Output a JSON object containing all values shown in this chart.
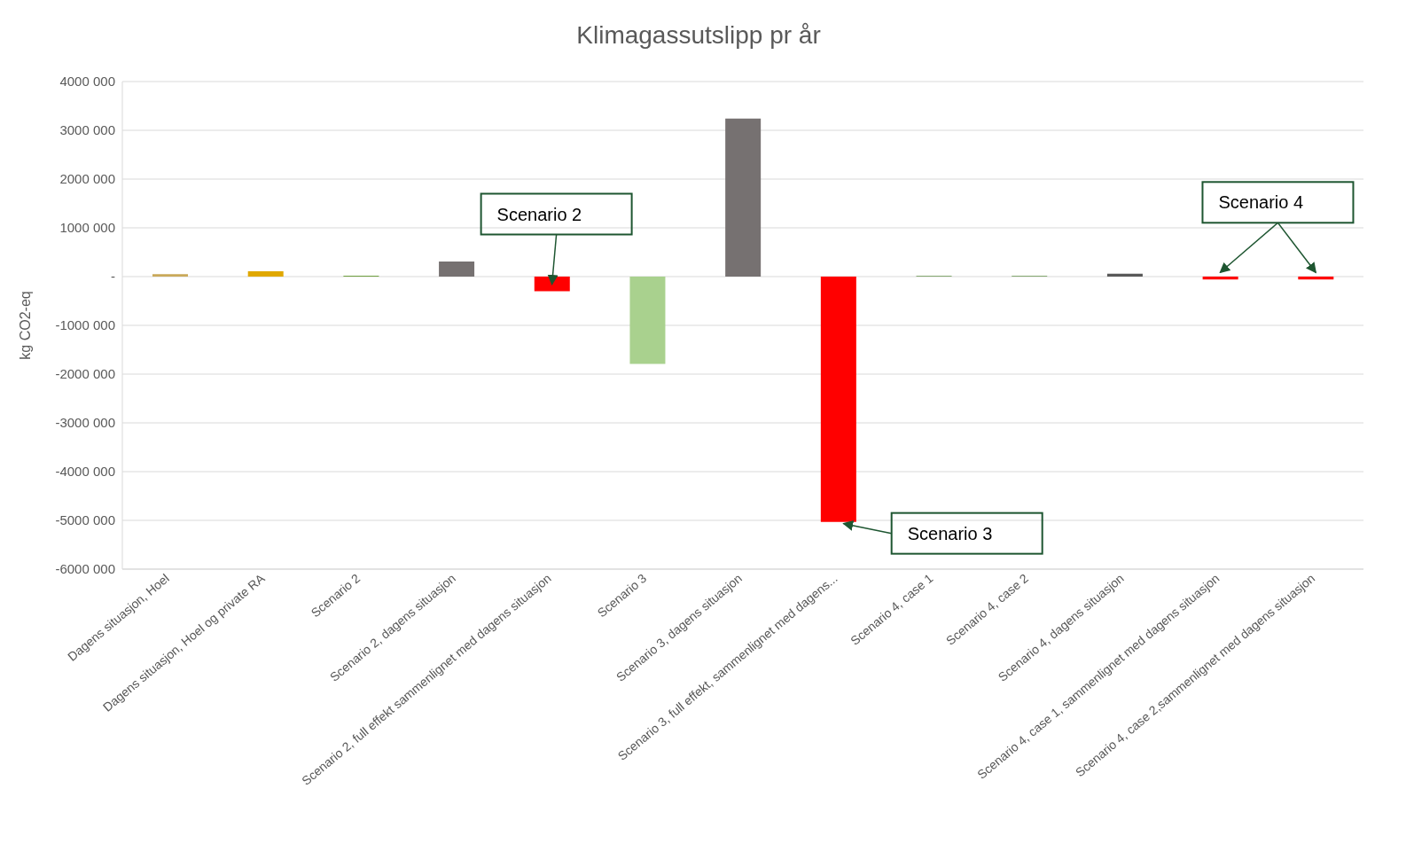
{
  "chart_data": {
    "type": "bar",
    "title": "Klimagassutslipp pr år",
    "ylabel": "kg CO2-eq",
    "categories": [
      "Dagens situasjon, Hoel",
      "Dagens situasjon, Hoel og private RA",
      "Scenario 2",
      "Scenario 2, dagens situasjon",
      "Scenario 2, full effekt sammenlignet med dagens situasjon",
      "Scenario 3",
      "Scenario 3, dagens situasjon",
      "Scenario 3, full effekt, sammenlignet med dagens...",
      "Scenario 4, case 1",
      "Scenario 4, case 2",
      "Scenario 4, dagens situasjon",
      "Scenario 4, case 1, sammenlignet med dagens situasjon",
      "Scenario 4, case 2,sammenlignet med dagens situasjon"
    ],
    "values": [
      50000,
      110000,
      20000,
      310000,
      -300000,
      -1790000,
      3240000,
      -5030000,
      20000,
      20000,
      60000,
      -60000,
      -60000
    ],
    "colors": [
      "#c9a95a",
      "#e0a800",
      "#70a040",
      "#767171",
      "#ff0000",
      "#a9d18e",
      "#767171",
      "#ff0000",
      "#84a870",
      "#84a870",
      "#595959",
      "#ff0000",
      "#ff0000"
    ],
    "ylim": [
      -6000000,
      4000000
    ],
    "yticks": [
      {
        "value": -6000000,
        "label": "-6000 000"
      },
      {
        "value": -5000000,
        "label": "-5000 000"
      },
      {
        "value": -4000000,
        "label": "-4000 000"
      },
      {
        "value": -3000000,
        "label": "-3000 000"
      },
      {
        "value": -2000000,
        "label": "-2000 000"
      },
      {
        "value": -1000000,
        "label": "-1000 000"
      },
      {
        "value": 0,
        "label": "-"
      },
      {
        "value": 1000000,
        "label": "1000 000"
      },
      {
        "value": 2000000,
        "label": "2000 000"
      },
      {
        "value": 3000000,
        "label": "3000 000"
      },
      {
        "value": 4000000,
        "label": "4000 000"
      }
    ],
    "grid": "y",
    "annotations": [
      "Scenario 2",
      {
        "text": "Scenario 3",
        "x": "Scenario 3, full effekt, sammenlignet med dagens...",
        "y": -5030000
      },
      "Scenario 4"
    ]
  }
}
